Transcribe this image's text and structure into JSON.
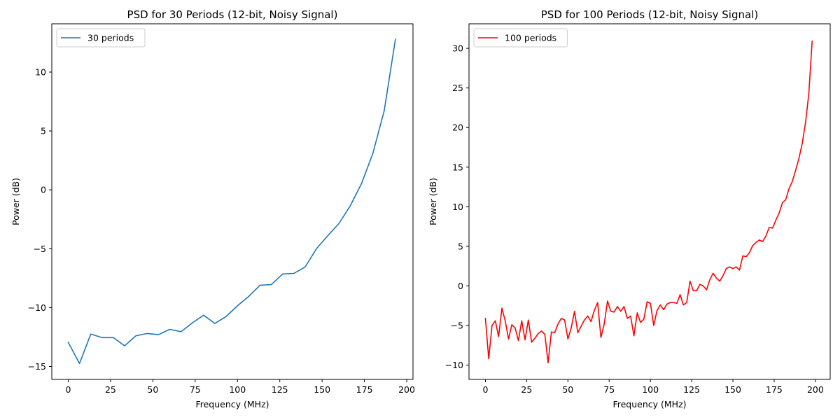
{
  "chart_data": [
    {
      "type": "line",
      "title": "PSD for 30 Periods (12-bit, Noisy Signal)",
      "xlabel": "Frequency (MHz)",
      "ylabel": "Power (dB)",
      "xlim": [
        -9.7,
        203.7
      ],
      "ylim": [
        -16.1,
        14.1
      ],
      "xticks": [
        0,
        25,
        50,
        75,
        100,
        125,
        150,
        175,
        200
      ],
      "yticks": [
        -15,
        -10,
        -5,
        0,
        5,
        10
      ],
      "tick_labels_x": [
        "0",
        "25",
        "50",
        "75",
        "100",
        "125",
        "150",
        "175",
        "200"
      ],
      "tick_labels_y": [
        "−15",
        "−10",
        "−5",
        "0",
        "5",
        "10"
      ],
      "legend": "upper-left",
      "grid": false,
      "series": [
        {
          "name": "30 periods",
          "color": "#1f77b4",
          "x": [
            0,
            6.67,
            13.33,
            20,
            26.67,
            33.33,
            40,
            46.67,
            53.33,
            60,
            66.67,
            73.33,
            80,
            86.67,
            93.33,
            100,
            106.67,
            113.33,
            120,
            126.67,
            133.33,
            140,
            146.67,
            153.33,
            160,
            166.67,
            173.33,
            180,
            186.67,
            193.33
          ],
          "y": [
            -12.95,
            -14.75,
            -12.25,
            -12.55,
            -12.55,
            -13.25,
            -12.4,
            -12.2,
            -12.3,
            -11.85,
            -12.05,
            -11.3,
            -10.65,
            -11.35,
            -10.75,
            -9.85,
            -9.05,
            -8.1,
            -8.05,
            -7.15,
            -7.1,
            -6.55,
            -5.0,
            -3.9,
            -2.85,
            -1.35,
            0.55,
            3.1,
            6.7,
            12.8
          ]
        }
      ]
    },
    {
      "type": "line",
      "title": "PSD for 100 Periods (12-bit, Noisy Signal)",
      "xlabel": "Frequency (MHz)",
      "ylabel": "Power (dB)",
      "xlim": [
        -9.95,
        208.95
      ],
      "ylim": [
        -11.8,
        33.1
      ],
      "xticks": [
        0,
        25,
        50,
        75,
        100,
        125,
        150,
        175,
        200
      ],
      "yticks": [
        -10,
        -5,
        0,
        5,
        10,
        15,
        20,
        25,
        30
      ],
      "tick_labels_x": [
        "0",
        "25",
        "50",
        "75",
        "100",
        "125",
        "150",
        "175",
        "200"
      ],
      "tick_labels_y": [
        "−10",
        "−5",
        "0",
        "5",
        "10",
        "15",
        "20",
        "25",
        "30"
      ],
      "legend": "upper-left",
      "grid": false,
      "series": [
        {
          "name": "100 periods",
          "color": "#ff0000",
          "x": [
            0,
            2,
            4,
            6,
            8,
            10,
            12,
            14,
            16,
            18,
            20,
            22,
            24,
            26,
            28,
            30,
            32,
            34,
            36,
            38,
            40,
            42,
            44,
            46,
            48,
            50,
            52,
            54,
            56,
            58,
            60,
            62,
            64,
            66,
            68,
            70,
            72,
            74,
            76,
            78,
            80,
            82,
            84,
            86,
            88,
            90,
            92,
            94,
            96,
            98,
            100,
            102,
            104,
            106,
            108,
            110,
            112,
            114,
            116,
            118,
            120,
            122,
            124,
            126,
            128,
            130,
            132,
            134,
            136,
            138,
            140,
            142,
            144,
            146,
            148,
            150,
            152,
            154,
            156,
            158,
            160,
            162,
            164,
            166,
            168,
            170,
            172,
            174,
            176,
            178,
            180,
            182,
            184,
            186,
            188,
            190,
            192,
            194,
            196,
            198
          ],
          "y": [
            -4.1,
            -9.2,
            -5.0,
            -4.4,
            -6.4,
            -2.8,
            -4.4,
            -6.7,
            -4.9,
            -5.3,
            -6.9,
            -4.4,
            -6.8,
            -4.3,
            -7.1,
            -6.6,
            -6.0,
            -5.7,
            -6.1,
            -9.7,
            -5.8,
            -5.9,
            -4.8,
            -4.1,
            -4.3,
            -6.7,
            -5.3,
            -3.2,
            -5.9,
            -5.1,
            -4.3,
            -3.8,
            -4.5,
            -3.1,
            -2.1,
            -6.5,
            -4.8,
            -1.9,
            -3.2,
            -3.3,
            -2.6,
            -3.2,
            -2.6,
            -4.1,
            -3.8,
            -6.3,
            -3.4,
            -4.6,
            -4.2,
            -2.0,
            -2.2,
            -5.0,
            -3.1,
            -2.4,
            -3.0,
            -2.3,
            -2.1,
            -2.1,
            -2.2,
            -1.1,
            -2.4,
            -2.1,
            0.6,
            -0.6,
            -0.6,
            0.2,
            0.0,
            -0.5,
            0.8,
            1.6,
            1.0,
            0.6,
            1.3,
            2.2,
            2.4,
            2.2,
            2.4,
            2.0,
            3.8,
            3.7,
            4.2,
            5.1,
            5.5,
            5.8,
            5.6,
            6.3,
            7.4,
            7.3,
            8.3,
            9.2,
            10.5,
            10.9,
            12.3,
            13.2,
            14.6,
            16.1,
            18.0,
            20.6,
            24.3,
            30.9
          ]
        }
      ]
    }
  ]
}
